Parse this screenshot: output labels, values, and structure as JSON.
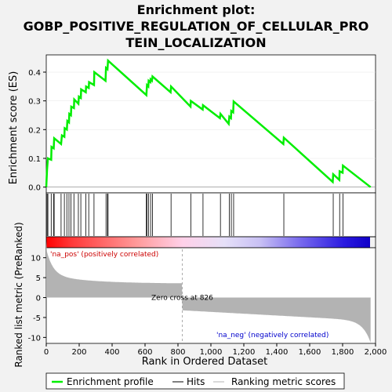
{
  "title_lines": [
    "Enrichment plot:",
    "GOBP_POSITIVE_REGULATION_OF_CELLULAR_PRO",
    "TEIN_LOCALIZATION"
  ],
  "colors": {
    "es_line": "#00ee00",
    "hits": "#000000",
    "metric_fill": "#b3b3b3",
    "pos_text": "#cc0000",
    "neg_text": "#0000cc"
  },
  "chart_data": {
    "type": "line",
    "es": {
      "ylabel": "Enrichment score (ES)",
      "yticks": [
        "0.0",
        "0.1",
        "0.2",
        "0.3",
        "0.4"
      ],
      "ylim": [
        -0.02,
        0.46
      ],
      "points": [
        [
          0,
          0
        ],
        [
          5,
          0.06
        ],
        [
          10,
          0.1
        ],
        [
          30,
          0.095
        ],
        [
          32,
          0.14
        ],
        [
          45,
          0.135
        ],
        [
          48,
          0.17
        ],
        [
          90,
          0.15
        ],
        [
          95,
          0.18
        ],
        [
          110,
          0.175
        ],
        [
          112,
          0.205
        ],
        [
          125,
          0.2
        ],
        [
          128,
          0.23
        ],
        [
          138,
          0.225
        ],
        [
          140,
          0.255
        ],
        [
          150,
          0.25
        ],
        [
          152,
          0.28
        ],
        [
          168,
          0.275
        ],
        [
          170,
          0.305
        ],
        [
          195,
          0.29
        ],
        [
          198,
          0.315
        ],
        [
          210,
          0.31
        ],
        [
          212,
          0.34
        ],
        [
          240,
          0.33
        ],
        [
          242,
          0.35
        ],
        [
          258,
          0.345
        ],
        [
          260,
          0.365
        ],
        [
          290,
          0.355
        ],
        [
          292,
          0.4
        ],
        [
          360,
          0.37
        ],
        [
          363,
          0.415
        ],
        [
          372,
          0.41
        ],
        [
          375,
          0.44
        ],
        [
          608,
          0.32
        ],
        [
          612,
          0.355
        ],
        [
          620,
          0.35
        ],
        [
          622,
          0.37
        ],
        [
          632,
          0.365
        ],
        [
          634,
          0.375
        ],
        [
          642,
          0.37
        ],
        [
          645,
          0.385
        ],
        [
          755,
          0.33
        ],
        [
          758,
          0.35
        ],
        [
          876,
          0.28
        ],
        [
          878,
          0.3
        ],
        [
          950,
          0.27
        ],
        [
          952,
          0.285
        ],
        [
          1055,
          0.24
        ],
        [
          1058,
          0.255
        ],
        [
          1108,
          0.22
        ],
        [
          1112,
          0.245
        ],
        [
          1122,
          0.24
        ],
        [
          1124,
          0.265
        ],
        [
          1135,
          0.26
        ],
        [
          1138,
          0.298
        ],
        [
          1440,
          0.15
        ],
        [
          1443,
          0.172
        ],
        [
          1740,
          0.018
        ],
        [
          1743,
          0.045
        ],
        [
          1780,
          0.025
        ],
        [
          1782,
          0.055
        ],
        [
          1800,
          0.05
        ],
        [
          1802,
          0.075
        ],
        [
          1970,
          0
        ]
      ]
    },
    "hits": [
      5,
      10,
      30,
      45,
      48,
      90,
      110,
      125,
      138,
      150,
      168,
      195,
      210,
      240,
      258,
      290,
      363,
      372,
      375,
      608,
      612,
      622,
      634,
      645,
      758,
      878,
      952,
      1058,
      1112,
      1124,
      1138,
      1443,
      1743,
      1782,
      1802
    ],
    "metric": {
      "ylabel": "Ranked list metric (PreRanked)",
      "yticks": [
        "10",
        "5",
        "0",
        "-5",
        "-10"
      ],
      "ylim": [
        -11.5,
        12.5
      ],
      "zero_cross_rank": 826,
      "zero_cross_label": "Zero cross at 826",
      "pos_label": "'na_pos' (positively correlated)",
      "neg_label": "'na_neg' (negatively correlated)"
    },
    "xlabel": "Rank in Ordered Dataset",
    "xticks": [
      "0",
      "200",
      "400",
      "600",
      "800",
      "1,000",
      "1,200",
      "1,400",
      "1,600",
      "1,800",
      "2,000"
    ],
    "xlim": [
      0,
      2000
    ],
    "n_ranks": 1970
  },
  "legend": {
    "items": [
      {
        "label": "Enrichment profile"
      },
      {
        "label": "Hits"
      },
      {
        "label": "Ranking metric scores"
      }
    ]
  }
}
